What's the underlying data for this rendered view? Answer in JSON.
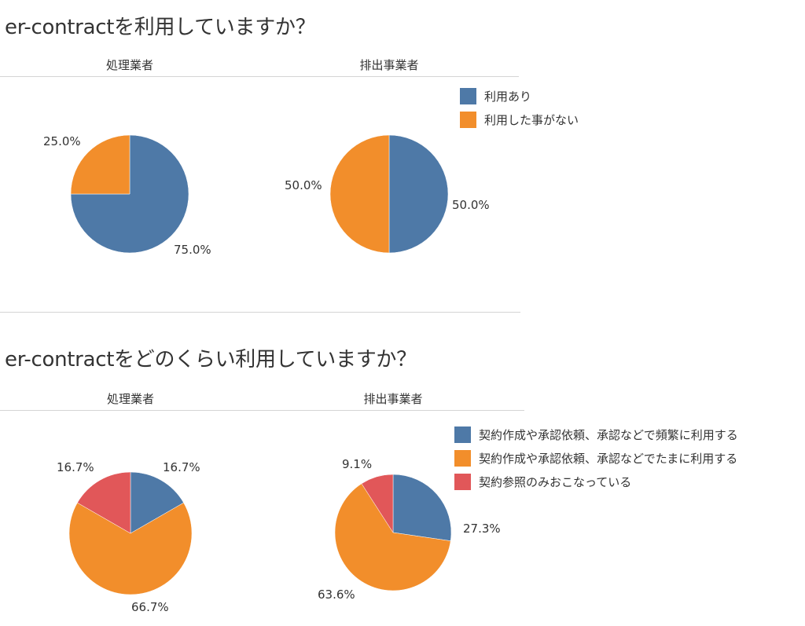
{
  "sections": [
    {
      "title": "er-contractを利用していますか？",
      "columns": [
        "処理業者",
        "排出事業者"
      ],
      "legend": [
        {
          "label": "利用あり",
          "color": "#4E79A7"
        },
        {
          "label": "利用した事がない",
          "color": "#F28E2B"
        }
      ]
    },
    {
      "title": "er-contractをどのくらい利用していますか？",
      "columns": [
        "処理業者",
        "排出事業者"
      ],
      "legend": [
        {
          "label": "契約作成や承認依頼、承認などで頻繁に利用する",
          "color": "#4E79A7"
        },
        {
          "label": "契約作成や承認依頼、承認などでたまに利用する",
          "color": "#F28E2B"
        },
        {
          "label": "契約参照のみおこなっている",
          "color": "#E15759"
        }
      ]
    }
  ],
  "chart_data": [
    {
      "type": "pie",
      "title": "er-contractを利用していますか？",
      "subtitle": "処理業者",
      "categories": [
        "利用あり",
        "利用した事がない"
      ],
      "values": [
        75.0,
        25.0
      ],
      "labels": [
        "75.0%",
        "25.0%"
      ],
      "colors": [
        "#4E79A7",
        "#F28E2B"
      ],
      "legend_position": "right"
    },
    {
      "type": "pie",
      "title": "er-contractを利用していますか？",
      "subtitle": "排出事業者",
      "categories": [
        "利用あり",
        "利用した事がない"
      ],
      "values": [
        50.0,
        50.0
      ],
      "labels": [
        "50.0%",
        "50.0%"
      ],
      "colors": [
        "#4E79A7",
        "#F28E2B"
      ],
      "legend_position": "right"
    },
    {
      "type": "pie",
      "title": "er-contractをどのくらい利用していますか？",
      "subtitle": "処理業者",
      "categories": [
        "契約作成や承認依頼、承認などで頻繁に利用する",
        "契約作成や承認依頼、承認などでたまに利用する",
        "契約参照のみおこなっている"
      ],
      "values": [
        16.7,
        66.7,
        16.7
      ],
      "labels": [
        "16.7%",
        "66.7%",
        "16.7%"
      ],
      "colors": [
        "#4E79A7",
        "#F28E2B",
        "#E15759"
      ],
      "legend_position": "right"
    },
    {
      "type": "pie",
      "title": "er-contractをどのくらい利用していますか？",
      "subtitle": "排出事業者",
      "categories": [
        "契約作成や承認依頼、承認などで頻繁に利用する",
        "契約作成や承認依頼、承認などでたまに利用する",
        "契約参照のみおこなっている"
      ],
      "values": [
        27.3,
        63.6,
        9.1
      ],
      "labels": [
        "27.3%",
        "63.6%",
        "9.1%"
      ],
      "colors": [
        "#4E79A7",
        "#F28E2B",
        "#E15759"
      ],
      "legend_position": "right"
    }
  ]
}
